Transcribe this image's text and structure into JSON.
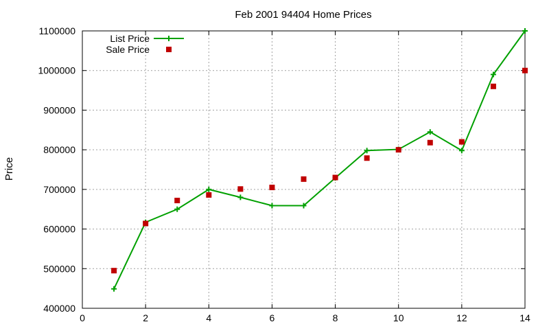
{
  "chart_data": {
    "type": "line",
    "title": "Feb 2001 94404 Home Prices",
    "xlabel": "",
    "ylabel": "Price",
    "xlim": [
      0,
      14
    ],
    "ylim": [
      400000,
      1100000
    ],
    "xticks": [
      0,
      2,
      4,
      6,
      8,
      10,
      12,
      14
    ],
    "yticks": [
      400000,
      500000,
      600000,
      700000,
      800000,
      900000,
      1000000,
      1100000
    ],
    "grid": true,
    "legend_position": "top-left",
    "series": [
      {
        "name": "List Price",
        "style": "linespoints",
        "marker": "plus",
        "color": "#00a000",
        "points": [
          [
            1,
            449000
          ],
          [
            2,
            617000
          ],
          [
            3,
            650000
          ],
          [
            4,
            700000
          ],
          [
            5,
            680000
          ],
          [
            6,
            659000
          ],
          [
            7,
            659000
          ],
          [
            8,
            729000
          ],
          [
            9,
            798000
          ],
          [
            10,
            801000
          ],
          [
            11,
            845000
          ],
          [
            12,
            798000
          ],
          [
            13,
            990000
          ],
          [
            14,
            1100000
          ]
        ]
      },
      {
        "name": "Sale Price",
        "style": "points",
        "marker": "square",
        "color": "#c00000",
        "points": [
          [
            1,
            495000
          ],
          [
            2,
            614000
          ],
          [
            3,
            672000
          ],
          [
            4,
            686000
          ],
          [
            5,
            701000
          ],
          [
            6,
            705000
          ],
          [
            7,
            726000
          ],
          [
            8,
            730000
          ],
          [
            9,
            779000
          ],
          [
            10,
            800000
          ],
          [
            11,
            818000
          ],
          [
            12,
            820000
          ],
          [
            13,
            960000
          ],
          [
            14,
            1000000
          ]
        ]
      }
    ]
  }
}
